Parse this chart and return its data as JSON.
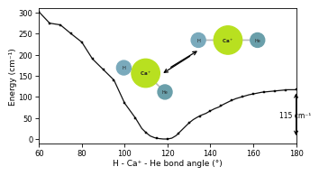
{
  "title": "",
  "xlabel": "H - Ca⁺ - He bond angle (°)",
  "ylabel": "Energy (cm⁻¹)",
  "xlim": [
    60,
    180
  ],
  "ylim": [
    -10,
    310
  ],
  "xticks": [
    60,
    80,
    100,
    120,
    140,
    160,
    180
  ],
  "yticks": [
    0,
    50,
    100,
    150,
    200,
    250,
    300
  ],
  "data_x": [
    60,
    65,
    70,
    75,
    80,
    85,
    90,
    95,
    100,
    105,
    108,
    110,
    112,
    114,
    116,
    118,
    120,
    122,
    124,
    126,
    128,
    130,
    132,
    134,
    136,
    138,
    140,
    142,
    144,
    146,
    148,
    150,
    152,
    154,
    156,
    158,
    160,
    162,
    164,
    166,
    168,
    170,
    172,
    174,
    176,
    178,
    180
  ],
  "data_y": [
    302,
    275,
    271,
    250,
    230,
    190,
    165,
    140,
    85,
    50,
    25,
    15,
    7,
    3,
    1,
    0,
    0,
    2,
    8,
    18,
    28,
    38,
    46,
    52,
    57,
    61,
    67,
    72,
    76,
    82,
    87,
    92,
    96,
    99,
    102,
    105,
    107,
    109,
    111,
    112,
    113,
    114,
    115,
    116,
    117,
    117,
    117
  ],
  "line_color": "#111111",
  "marker_color": "#111111",
  "background_color": "#ffffff",
  "annotation_115": "115 cm⁻¹",
  "ca_color": "#b8e020",
  "he_color": "#6a9faa",
  "h_color": "#7aaabc",
  "bond_color": "#bbbbbb"
}
